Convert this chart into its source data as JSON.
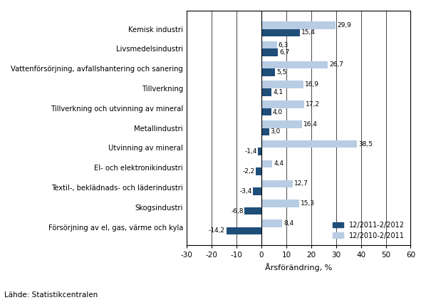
{
  "categories": [
    "Kemisk industri",
    "Livsmedelsindustri",
    "Vattenförsörjning, avfallshantering och sanering",
    "Tillverkning",
    "Tillverkning och utvinning av mineral",
    "Metallindustri",
    "Utvinning av mineral",
    "El- och elektronikindustri",
    "Textil-, beklädnads- och läderindustri",
    "Skogsindustri",
    "Försörjning av el, gas, värme och kyla"
  ],
  "series1_values": [
    15.4,
    6.7,
    5.5,
    4.1,
    4.0,
    3.0,
    -1.4,
    -2.2,
    -3.4,
    -6.8,
    -14.2
  ],
  "series2_values": [
    29.9,
    6.3,
    26.7,
    16.9,
    17.2,
    16.4,
    38.5,
    4.4,
    12.7,
    15.3,
    8.4
  ],
  "series1_color": "#1F4E79",
  "series2_color": "#B8CCE4",
  "series1_label": "12/2011-2/2012",
  "series2_label": "12/2010-2/2011",
  "xlabel": "Årsförändring, %",
  "xlim": [
    -30,
    60
  ],
  "xticks": [
    -30,
    -20,
    -10,
    0,
    10,
    20,
    30,
    40,
    50,
    60
  ],
  "source_text": "Lähde: Statistikcentralen",
  "bar_height": 0.38
}
